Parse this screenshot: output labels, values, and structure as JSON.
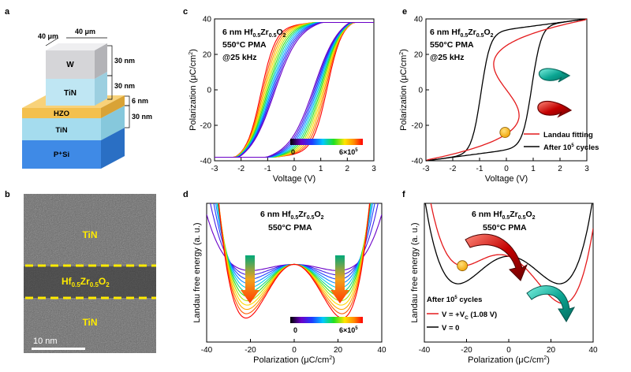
{
  "panels": {
    "a": {
      "label": "a",
      "dims": [
        "40 μm",
        "40 μm"
      ],
      "layers": [
        {
          "name": "W",
          "thickness": "30 nm",
          "color": "#d5d5d8"
        },
        {
          "name": "TiN",
          "thickness": "30 nm",
          "color": "#bfe6f3"
        },
        {
          "name": "HZO",
          "thickness": "6 nm",
          "color": "#f3c04e"
        },
        {
          "name": "TiN",
          "thickness": "30 nm",
          "color": "#a5dcee"
        },
        {
          "name": "P⁺Si",
          "thickness": "",
          "color": "#3f8ae6"
        }
      ]
    },
    "b": {
      "label": "b",
      "top_label": "TiN",
      "mid_label_main": "Hf",
      "mid_sub1": "0.5",
      "mid_mid": "Zr",
      "mid_sub2": "0.5",
      "mid_o": "O",
      "mid_sub3": "2",
      "bottom_label": "TiN",
      "scale_bar": "10 nm"
    },
    "c": {
      "label": "c",
      "title_l1": "6 nm Hf",
      "title_sub1": "0.5",
      "title_zr": "Zr",
      "title_sub2": "0.5",
      "title_o": "O",
      "title_sub3": "2",
      "title_l2": "550°C PMA",
      "title_l3": "@25 kHz",
      "colorbar_min": "0",
      "colorbar_max_base": "6×10",
      "colorbar_max_exp": "5"
    },
    "d": {
      "label": "d",
      "title_l1": "6 nm Hf",
      "title_sub1": "0.5",
      "title_zr": "Zr",
      "title_sub2": "0.5",
      "title_o": "O",
      "title_sub3": "2",
      "title_l2": "550°C PMA",
      "colorbar_min": "0",
      "colorbar_max_base": "6×10",
      "colorbar_max_exp": "5"
    },
    "e": {
      "label": "e",
      "title_l1": "6 nm Hf",
      "title_sub1": "0.5",
      "title_zr": "Zr",
      "title_sub2": "0.5",
      "title_o": "O",
      "title_sub3": "2",
      "title_l2": "550°C PMA",
      "title_l3": "@25 kHz",
      "legend": [
        "Landau fitting",
        "After 10",
        "5",
        " cycles"
      ]
    },
    "f": {
      "label": "f",
      "title_l1": "6 nm Hf",
      "title_sub1": "0.5",
      "title_zr": "Zr",
      "title_sub2": "0.5",
      "title_o": "O",
      "title_sub3": "2",
      "title_l2": "550°C PMA",
      "legend_head": "After 10",
      "legend_head_exp": "5",
      "legend_head_tail": " cycles",
      "legend_red": "V = +V",
      "legend_red_sub": "C",
      "legend_red_tail": " (1.08 V)",
      "legend_black": "V = 0"
    }
  },
  "chart_data": [
    {
      "id": "c",
      "type": "line",
      "xlabel": "Voltage (V)",
      "ylabel": "Polarization (μC/cm²)",
      "ylabel_base": "Polarization (μC/cm",
      "ylabel_sup": "2",
      "ylabel_tail": ")",
      "xlim": [
        -3,
        3
      ],
      "ylim": [
        -40,
        40
      ],
      "xticks": [
        -3,
        -2,
        -1,
        0,
        1,
        2,
        3
      ],
      "yticks": [
        -40,
        -20,
        0,
        20,
        40
      ],
      "n_curves": 12,
      "coercive_first": 1.25,
      "coercive_last": 0.75,
      "saturation": 37,
      "remanent_first": 22,
      "remanent_last": 6
    },
    {
      "id": "d",
      "type": "line",
      "xlabel": "Polarization (μC/cm²)",
      "xlabel_base": "Polarization (μC/cm",
      "xlabel_sup": "2",
      "xlabel_tail": ")",
      "ylabel": "Landau free energy (a. u.)",
      "xlim": [
        -40,
        40
      ],
      "xticks": [
        -40,
        -20,
        0,
        20,
        40
      ],
      "n_curves": 12,
      "well_position_first": 20,
      "well_position_last": 22
    },
    {
      "id": "e",
      "type": "line",
      "xlabel": "Voltage (V)",
      "ylabel": "Polarization (μC/cm²)",
      "ylabel_base": "Polarization (μC/cm",
      "ylabel_sup": "2",
      "ylabel_tail": ")",
      "xlim": [
        -3,
        3
      ],
      "ylim": [
        -40,
        40
      ],
      "xticks": [
        -3,
        -2,
        -1,
        0,
        1,
        2,
        3
      ],
      "yticks": [
        -40,
        -20,
        0,
        20,
        40
      ],
      "series": [
        {
          "name": "Landau fitting",
          "color": "#e41a1c"
        },
        {
          "name": "After 10⁵ cycles",
          "color": "#000000"
        }
      ],
      "marker": {
        "x": -0.05,
        "y": -24
      }
    },
    {
      "id": "f",
      "type": "line",
      "xlabel": "Polarization (μC/cm²)",
      "xlabel_base": "Polarization (μC/cm",
      "xlabel_sup": "2",
      "xlabel_tail": ")",
      "ylabel": "Landau free energy (a. u.)",
      "xlim": [
        -40,
        40
      ],
      "xticks": [
        -40,
        -20,
        0,
        20,
        40
      ],
      "series": [
        {
          "name": "V = +Vc (1.08 V)",
          "color": "#e41a1c"
        },
        {
          "name": "V = 0",
          "color": "#000000"
        }
      ],
      "marker": {
        "x": -22
      }
    }
  ]
}
